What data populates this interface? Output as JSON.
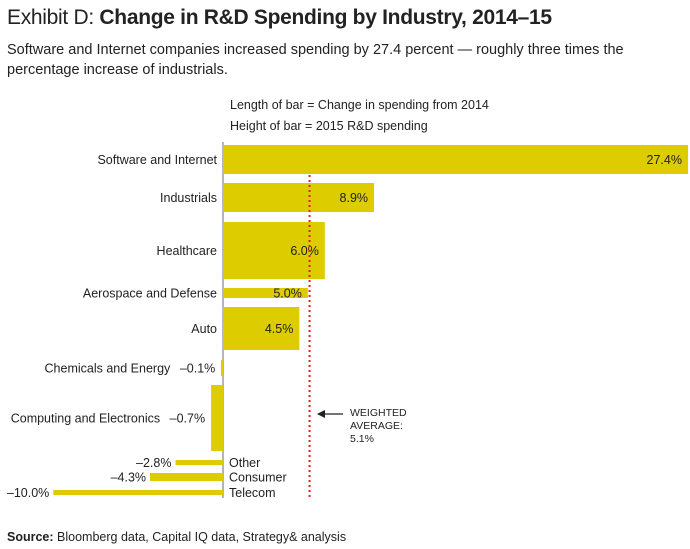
{
  "header": {
    "title_prefix": "Exhibit D:",
    "title_main": "Change in R&D Spending by Industry, 2014–15",
    "subtitle": "Software and Internet companies increased spending by 27.4 percent — roughly three times the percentage increase of industrials."
  },
  "legend": {
    "length": "Length of bar = Change in spending from 2014",
    "height": "Height of bar = 2015 R&D spending"
  },
  "source": {
    "label": "Source:",
    "text": " Bloomberg data, Capital IQ data, Strategy& analysis"
  },
  "colors": {
    "bar": "#DCCC00",
    "average_line": "#E0201B",
    "axis": "#9A9AAE"
  },
  "chart_data": {
    "type": "bar",
    "orientation": "horizontal",
    "xlabel": "",
    "ylabel": "",
    "categories": [
      "Software and Internet",
      "Industrials",
      "Healthcare",
      "Aerospace and Defense",
      "Auto",
      "Chemicals and Energy",
      "Computing and Electronics",
      "Other",
      "Consumer",
      "Telecom"
    ],
    "values": [
      27.4,
      8.9,
      6.0,
      5.0,
      4.5,
      -0.1,
      -0.7,
      -2.8,
      -4.3,
      -10.0
    ],
    "labels": [
      "27.4%",
      "8.9%",
      "6.0%",
      "5.0%",
      "4.5%",
      "–0.1%",
      "–0.7%",
      "–2.8%",
      "–4.3%",
      "–10.0%"
    ],
    "xlim": [
      -10,
      27.4
    ],
    "reference_line": {
      "value": 5.1,
      "label_lines": [
        "WEIGHTED",
        "AVERAGE:",
        "5.1%"
      ]
    }
  }
}
